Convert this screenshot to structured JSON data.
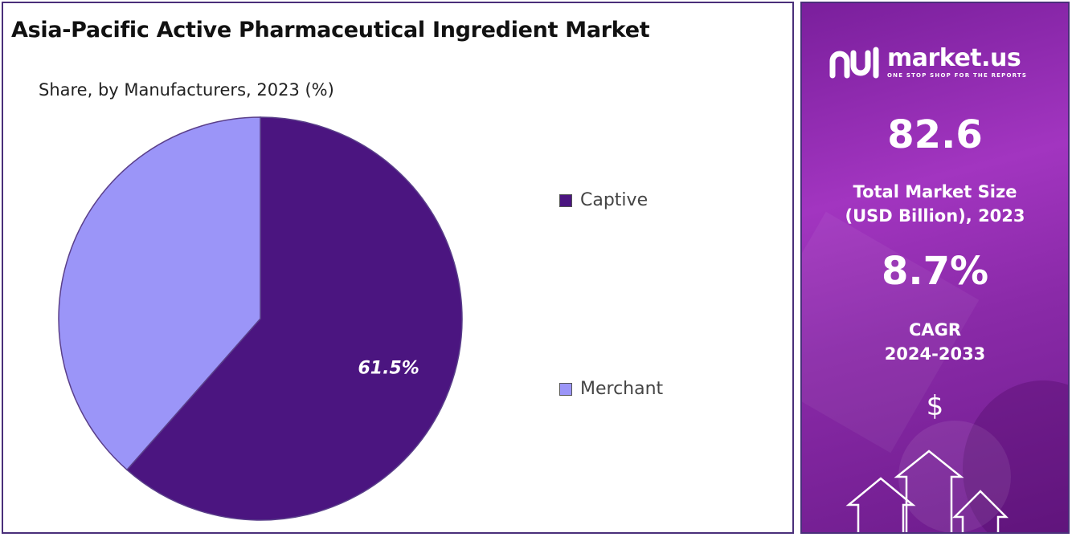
{
  "title": "Asia-Pacific Active Pharmaceutical Ingredient Market",
  "subtitle": "Share, by Manufacturers, 2023 (%)",
  "chart_data": {
    "type": "pie",
    "title": "Asia-Pacific Active Pharmaceutical Ingredient Market",
    "subtitle": "Share, by Manufacturers, 2023 (%)",
    "categories": [
      "Captive",
      "Merchant"
    ],
    "values": [
      61.5,
      38.5
    ],
    "colors": [
      "#4b1580",
      "#9b95f8"
    ],
    "data_labels": [
      "61.5%",
      ""
    ],
    "legend_position": "right"
  },
  "legend": [
    {
      "label": "Captive",
      "color": "#4b1580"
    },
    {
      "label": "Merchant",
      "color": "#9b95f8"
    }
  ],
  "side_panel": {
    "brand_name": "market.us",
    "brand_tagline": "ONE STOP SHOP FOR THE REPORTS",
    "market_size_value": "82.6",
    "market_size_label_line1": "Total Market Size",
    "market_size_label_line2": "(USD Billion), 2023",
    "cagr_value": "8.7%",
    "cagr_label_line1": "CAGR",
    "cagr_label_line2": "2024-2033",
    "currency_symbol": "$",
    "background_color": "#9a2fb8"
  }
}
